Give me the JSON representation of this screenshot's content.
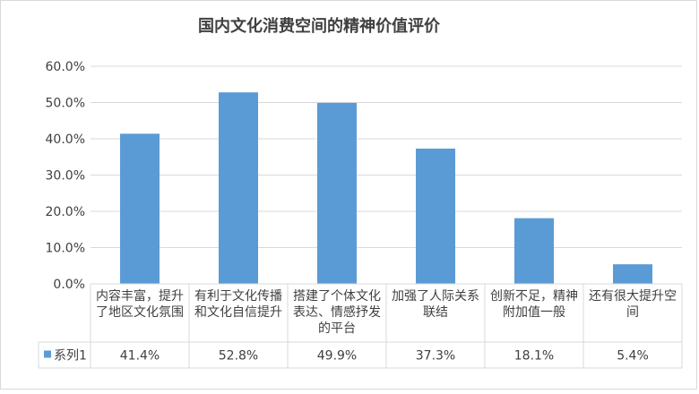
{
  "chart_data": {
    "type": "bar",
    "title": "国内文化消费空间的精神价值评价",
    "categories": [
      [
        "内容丰富，提升",
        "了地区文化氛围"
      ],
      [
        "有利于文化传播",
        "和文化自信提升"
      ],
      [
        "搭建了个体文化",
        "表达、情感抒发",
        "的平台"
      ],
      [
        "加强了人际关系",
        "联结"
      ],
      [
        "创新不足，精神",
        "附加值一般"
      ],
      [
        "还有很大提升空",
        "间"
      ]
    ],
    "series": [
      {
        "name": "系列1",
        "values": [
          41.4,
          52.8,
          49.9,
          37.3,
          18.1,
          5.4
        ],
        "labels": [
          "41.4%",
          "52.8%",
          "49.9%",
          "37.3%",
          "18.1%",
          "5.4%"
        ]
      }
    ],
    "y_ticks": [
      "0.0%",
      "10.0%",
      "20.0%",
      "30.0%",
      "40.0%",
      "50.0%",
      "60.0%"
    ],
    "ylim": [
      0,
      60
    ],
    "grid": true,
    "legend": "data-table",
    "colors": {
      "bar": "#5b9bd5",
      "grid": "#d9d9d9",
      "text": "#404040"
    }
  }
}
